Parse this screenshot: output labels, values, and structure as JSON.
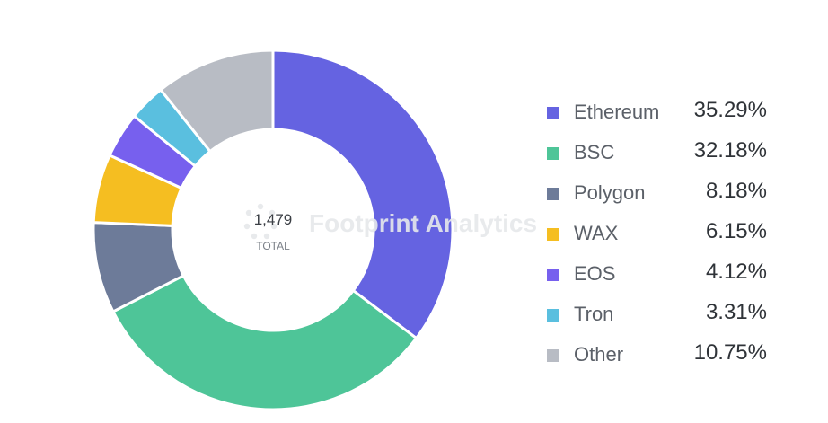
{
  "chart_data": {
    "type": "pie",
    "title": "",
    "total": "1,479",
    "total_caption": "TOTAL",
    "slices": [
      {
        "label": "Ethereum",
        "percent": 35.29,
        "percent_label": "35.29%",
        "color": "#6563e1"
      },
      {
        "label": "BSC",
        "percent": 32.18,
        "percent_label": "32.18%",
        "color": "#4ec598"
      },
      {
        "label": "Polygon",
        "percent": 8.18,
        "percent_label": "8.18%",
        "color": "#6d7b99"
      },
      {
        "label": "WAX",
        "percent": 6.15,
        "percent_label": "6.15%",
        "color": "#f5be21"
      },
      {
        "label": "EOS",
        "percent": 4.12,
        "percent_label": "4.12%",
        "color": "#7760ee"
      },
      {
        "label": "Tron",
        "percent": 3.31,
        "percent_label": "3.31%",
        "color": "#5abfdf"
      },
      {
        "label": "Other",
        "percent": 10.75,
        "percent_label": "10.75%",
        "color": "#b8bcc4"
      }
    ],
    "legend_position": "right"
  },
  "watermark": {
    "text": "Footprint Analytics"
  }
}
